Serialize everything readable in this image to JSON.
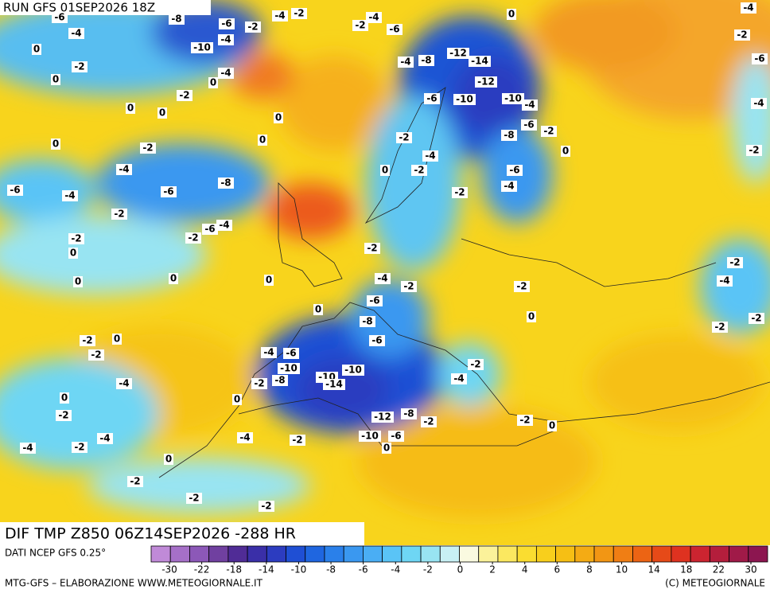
{
  "header": {
    "title": "RUN GFS 01SEP2026 18Z"
  },
  "footer": {
    "title": "DIF TMP Z850 06Z14SEP2026 -288 HR",
    "source": "DATI NCEP GFS 0.25°",
    "credit_left": "MTG-GFS – ELABORAZIONE WWW.METEOGIORNALE.IT",
    "credit_right": "(C) METEOGIORNALE"
  },
  "colorbar": {
    "ticks": [
      -30,
      -22,
      -18,
      -14,
      -10,
      -8,
      -6,
      -4,
      -2,
      0,
      2,
      4,
      6,
      8,
      10,
      14,
      18,
      22,
      30
    ],
    "colors": [
      "#c08ad8",
      "#a670c8",
      "#8c58b8",
      "#7040a0",
      "#502c96",
      "#3a2fa8",
      "#2c3cc0",
      "#1f4fd4",
      "#1f66e0",
      "#2a80ea",
      "#3a98f0",
      "#4aaef4",
      "#5ac4f6",
      "#6ed6f4",
      "#98e4f2",
      "#c8f0f4",
      "#fafae0",
      "#fbf29a",
      "#fbe860",
      "#fadd30",
      "#f8cf1c",
      "#f6bf14",
      "#f4ab14",
      "#f29614",
      "#f07e14",
      "#ec6414",
      "#e64a18",
      "#de3220",
      "#cc2430",
      "#b41e3c",
      "#a01a48",
      "#8c1650"
    ]
  },
  "contour_labels": [
    -6,
    -8,
    -6,
    -4,
    -2,
    -4,
    -2,
    -4,
    -10,
    -4,
    -2,
    -6,
    -12,
    -14,
    0,
    -2,
    0,
    -4,
    0,
    -2,
    -4,
    -8,
    -12,
    -6,
    -10,
    -10,
    -4,
    0,
    0,
    0,
    -6,
    -2,
    -8,
    0,
    -2,
    0,
    -2,
    0,
    -4,
    -4,
    -2,
    0,
    -6,
    -6,
    -4,
    -6,
    -8,
    -4,
    -2,
    -2,
    -4,
    -6,
    -2,
    -2,
    0,
    -2,
    0,
    0,
    0,
    -4,
    -2,
    -2,
    -2,
    -4,
    -6,
    0,
    0,
    -8,
    -2,
    -2,
    0,
    -6,
    -2,
    -4,
    -6,
    -10,
    -10,
    -10,
    -14,
    -8,
    -2,
    -4,
    -2,
    -4,
    0,
    0,
    -2,
    -12,
    -8,
    -2,
    -2,
    0,
    -10,
    -6,
    0,
    -2,
    -4,
    -4,
    -2,
    -4,
    0,
    -2,
    -2,
    -2,
    -2,
    -4,
    0,
    -4,
    -2,
    -6,
    -2
  ]
}
